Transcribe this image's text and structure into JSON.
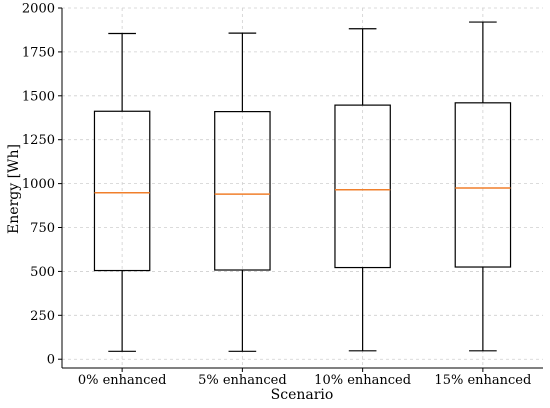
{
  "chart_data": {
    "type": "boxplot",
    "xlabel": "Scenario",
    "ylabel": "Energy [Wh]",
    "ylim": [
      -50,
      2000
    ],
    "yticks": [
      0,
      250,
      500,
      750,
      1000,
      1250,
      1500,
      1750,
      2000
    ],
    "grid": true,
    "median_color": "#f07f2b",
    "categories": [
      "0% enhanced",
      "5% enhanced",
      "10% enhanced",
      "15% enhanced"
    ],
    "boxes": [
      {
        "min": 45,
        "q1": 505,
        "median": 948,
        "q3": 1412,
        "max": 1855
      },
      {
        "min": 45,
        "q1": 508,
        "median": 940,
        "q3": 1410,
        "max": 1857
      },
      {
        "min": 48,
        "q1": 522,
        "median": 965,
        "q3": 1447,
        "max": 1882
      },
      {
        "min": 48,
        "q1": 525,
        "median": 975,
        "q3": 1460,
        "max": 1920
      }
    ]
  }
}
